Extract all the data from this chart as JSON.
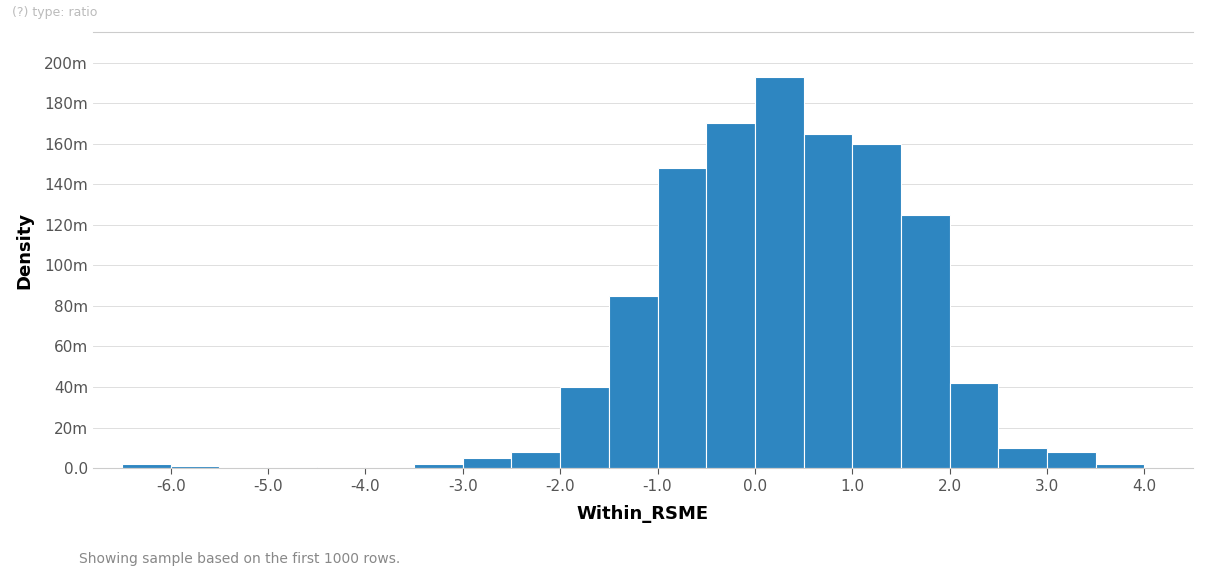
{
  "xlabel": "Within_RSME",
  "ylabel": "Density",
  "bar_color": "#2e86c1",
  "xlim": [
    -6.8,
    4.5
  ],
  "ylim": [
    0,
    0.215
  ],
  "xticks": [
    -6.0,
    -5.0,
    -4.0,
    -3.0,
    -2.0,
    -1.0,
    0.0,
    1.0,
    2.0,
    3.0,
    4.0
  ],
  "xtick_labels": [
    "-6.0",
    "-5.0",
    "-4.0",
    "-3.0",
    "-2.0",
    "-1.0",
    "0.0",
    "1.0",
    "2.0",
    "3.0",
    "4.0"
  ],
  "yticks": [
    0.0,
    0.02,
    0.04,
    0.06,
    0.08,
    0.1,
    0.12,
    0.14,
    0.16,
    0.18,
    0.2
  ],
  "ytick_labels": [
    "0.0",
    "20m",
    "40m",
    "60m",
    "80m",
    "100m",
    "120m",
    "140m",
    "160m",
    "180m",
    "200m"
  ],
  "footnote": "Showing sample based on the first 1000 rows.",
  "bin_edges": [
    -6.5,
    -6.0,
    -5.5,
    -5.0,
    -4.5,
    -4.0,
    -3.5,
    -3.0,
    -2.5,
    -2.0,
    -1.5,
    -1.0,
    -0.5,
    0.0,
    0.5,
    1.0,
    1.5,
    2.0,
    2.5,
    3.0,
    3.5,
    4.0
  ],
  "bin_heights": [
    0.002,
    0.001,
    0.0005,
    0.0005,
    0.0005,
    0.0005,
    0.002,
    0.005,
    0.008,
    0.04,
    0.085,
    0.148,
    0.17,
    0.193,
    0.165,
    0.16,
    0.125,
    0.042,
    0.01,
    0.008,
    0.002
  ],
  "background_color": "#ffffff",
  "grid_color": "#d9d9d9",
  "top_label": "(?) type: ratio"
}
